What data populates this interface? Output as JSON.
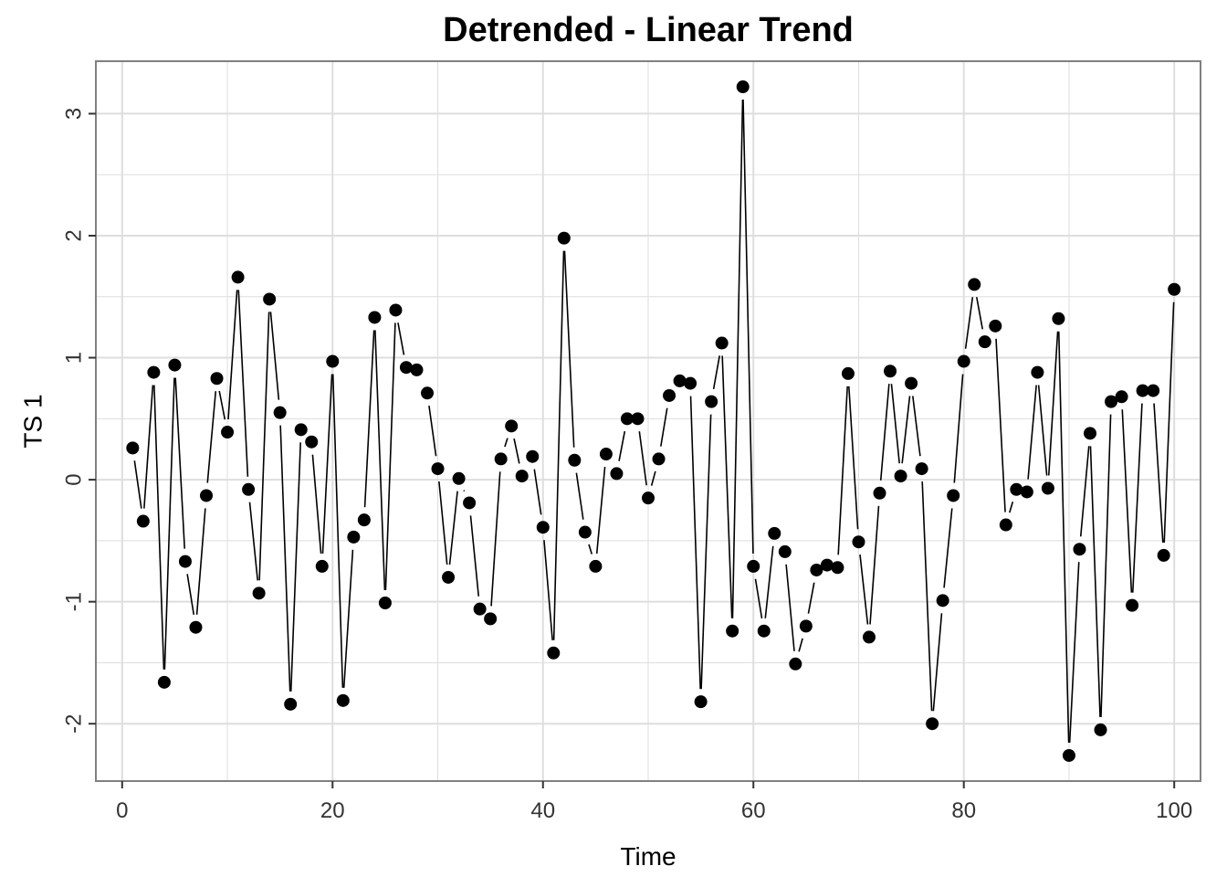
{
  "chart_data": {
    "type": "line",
    "title": "Detrended - Linear Trend",
    "xlabel": "Time",
    "ylabel": "TS 1",
    "xlim": [
      -2.5,
      102.5
    ],
    "ylim": [
      -2.47,
      3.43
    ],
    "xticks": [
      0,
      20,
      40,
      60,
      80,
      100
    ],
    "yticks": [
      -2,
      -1,
      0,
      1,
      2,
      3
    ],
    "xtick_labels": [
      "0",
      "20",
      "40",
      "60",
      "80",
      "100"
    ],
    "ytick_labels": [
      "-2",
      "-1",
      "0",
      "1",
      "2",
      "3"
    ],
    "grid": true,
    "markers": true,
    "series_color": "#000000",
    "grid_color": "#dedede",
    "frame_color": "#808080",
    "x": [
      1,
      2,
      3,
      4,
      5,
      6,
      7,
      8,
      9,
      10,
      11,
      12,
      13,
      14,
      15,
      16,
      17,
      18,
      19,
      20,
      21,
      22,
      23,
      24,
      25,
      26,
      27,
      28,
      29,
      30,
      31,
      32,
      33,
      34,
      35,
      36,
      37,
      38,
      39,
      40,
      41,
      42,
      43,
      44,
      45,
      46,
      47,
      48,
      49,
      50,
      51,
      52,
      53,
      54,
      55,
      56,
      57,
      58,
      59,
      60,
      61,
      62,
      63,
      64,
      65,
      66,
      67,
      68,
      69,
      70,
      71,
      72,
      73,
      74,
      75,
      76,
      77,
      78,
      79,
      80,
      81,
      82,
      83,
      84,
      85,
      86,
      87,
      88,
      89,
      90,
      91,
      92,
      93,
      94,
      95,
      96,
      97,
      98,
      99,
      100
    ],
    "y": [
      0.26,
      -0.34,
      0.88,
      -1.66,
      0.94,
      -0.67,
      -1.21,
      -0.13,
      0.83,
      0.39,
      1.66,
      -0.08,
      -0.93,
      1.48,
      0.55,
      -1.84,
      0.41,
      0.31,
      -0.71,
      0.97,
      -1.81,
      -0.47,
      -0.33,
      1.33,
      -1.01,
      1.39,
      0.92,
      0.9,
      0.71,
      0.09,
      -0.8,
      0.01,
      -0.19,
      -1.06,
      -1.14,
      0.17,
      0.44,
      0.03,
      0.19,
      -0.39,
      -1.42,
      1.98,
      0.16,
      -0.43,
      -0.71,
      0.21,
      0.05,
      0.5,
      0.5,
      -0.15,
      0.17,
      0.69,
      0.81,
      0.79,
      -1.82,
      0.64,
      1.12,
      -1.24,
      3.22,
      -0.71,
      -1.24,
      -0.44,
      -0.59,
      -1.51,
      -1.2,
      -0.74,
      -0.7,
      -0.72,
      0.87,
      -0.51,
      -1.29,
      -0.11,
      0.89,
      0.03,
      0.79,
      0.09,
      -2.0,
      -0.99,
      -0.13,
      0.97,
      1.6,
      1.13,
      1.26,
      -0.37,
      -0.08,
      -0.1,
      0.88,
      -0.07,
      1.32,
      -2.26,
      -0.57,
      0.38,
      -2.05,
      0.64,
      0.68,
      -1.03,
      0.73,
      0.73,
      -0.62,
      1.56
    ]
  }
}
